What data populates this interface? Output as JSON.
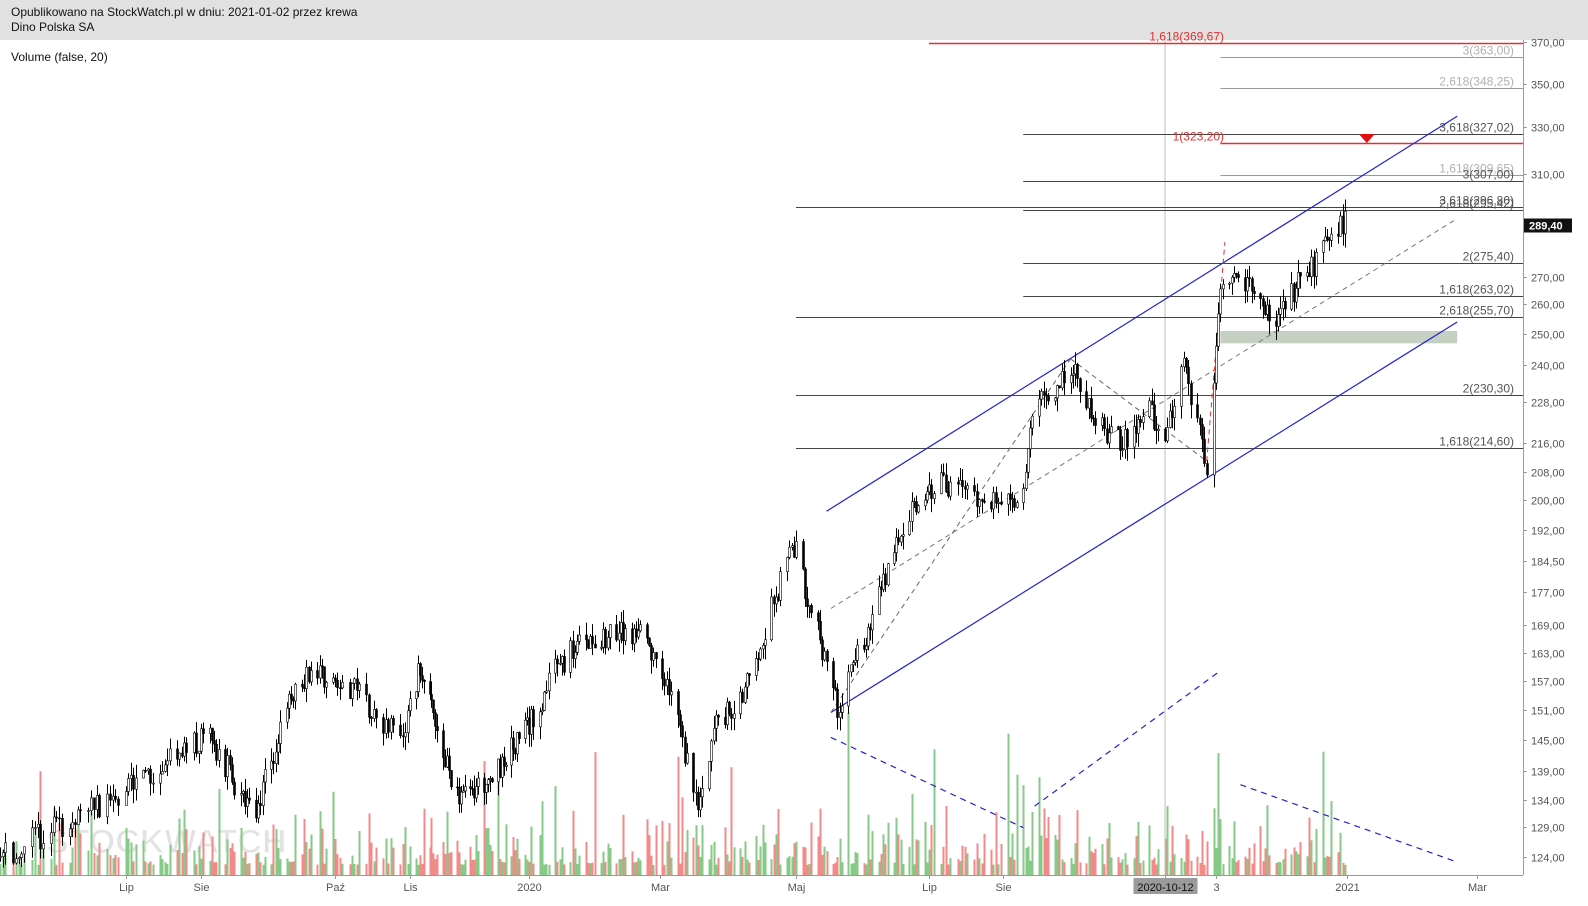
{
  "header": {
    "published": "Opublikowano na StockWatch.pl w dniu: 2021-01-02 przez krewa",
    "instrument": "Dino Polska SA"
  },
  "indicator_label": "Volume (false, 20)",
  "watermark": "STOCKWATCH",
  "colors": {
    "up": "#87c987",
    "down": "#f28a8a",
    "candle": "#000000",
    "fib_red": "#e03030",
    "fib_gray": "#9a9a9a",
    "channel": "#2222cc",
    "zone": "#c5cfc2"
  },
  "chart_data": {
    "type": "candlestick",
    "y_ticks": [
      "370,00",
      "350,00",
      "330,00",
      "310,00",
      "289,40",
      "270,00",
      "260,00",
      "250,00",
      "240,00",
      "228,00",
      "216,00",
      "208,00",
      "200,00",
      "192,00",
      "184,50",
      "177,00",
      "169,00",
      "163,00",
      "157,00",
      "151,00",
      "145,00",
      "139,00",
      "134,00",
      "129,00",
      "124,00"
    ],
    "y_tick_values": [
      370,
      350,
      330,
      310,
      289.4,
      270,
      260,
      250,
      240,
      228,
      216,
      208,
      200,
      192,
      184.5,
      177,
      169,
      163,
      157,
      151,
      145,
      139,
      134,
      129,
      124
    ],
    "last_price": "289,40",
    "x_labels": [
      {
        "label": "Lip",
        "date": "2019-07-01"
      },
      {
        "label": "Sie",
        "date": "2019-08-01"
      },
      {
        "label": "Paź",
        "date": "2019-10-01"
      },
      {
        "label": "Lis",
        "date": "2019-11-01"
      },
      {
        "label": "2020",
        "date": "2020-01-01"
      },
      {
        "label": "Mar",
        "date": "2020-03-01"
      },
      {
        "label": "Maj",
        "date": "2020-05-01"
      },
      {
        "label": "Lip",
        "date": "2020-07-01"
      },
      {
        "label": "Sie",
        "date": "2020-08-01"
      },
      {
        "label": "2020-10-12",
        "date": "2020-10-12"
      },
      {
        "label": "3",
        "date": "2020-11-03"
      },
      {
        "label": "2021",
        "date": "2021-01-01"
      },
      {
        "label": "Mar",
        "date": "2021-03-01"
      }
    ],
    "price_path": [
      [
        "2019-05-15",
        124
      ],
      [
        "2019-06-10",
        130
      ],
      [
        "2019-07-15",
        140
      ],
      [
        "2019-08-05",
        146
      ],
      [
        "2019-08-25",
        130
      ],
      [
        "2019-09-10",
        152
      ],
      [
        "2019-09-20",
        160
      ],
      [
        "2019-10-10",
        155
      ],
      [
        "2019-10-28",
        145
      ],
      [
        "2019-11-06",
        160
      ],
      [
        "2019-11-18",
        141
      ],
      [
        "2019-11-28",
        134
      ],
      [
        "2019-12-15",
        139
      ],
      [
        "2019-12-31",
        147
      ],
      [
        "2020-01-15",
        161
      ],
      [
        "2020-01-31",
        167
      ],
      [
        "2020-02-20",
        167
      ],
      [
        "2020-03-05",
        155
      ],
      [
        "2020-03-18",
        132
      ],
      [
        "2020-03-25",
        148
      ],
      [
        "2020-04-05",
        152
      ],
      [
        "2020-04-20",
        173
      ],
      [
        "2020-04-30",
        188
      ],
      [
        "2020-05-10",
        169
      ],
      [
        "2020-05-20",
        152
      ],
      [
        "2020-06-05",
        171
      ],
      [
        "2020-06-20",
        194
      ],
      [
        "2020-07-05",
        205
      ],
      [
        "2020-07-25",
        201
      ],
      [
        "2020-08-08",
        197
      ],
      [
        "2020-08-15",
        225
      ],
      [
        "2020-08-31",
        240
      ],
      [
        "2020-09-10",
        222
      ],
      [
        "2020-09-25",
        216
      ],
      [
        "2020-10-05",
        226
      ],
      [
        "2020-10-12",
        218
      ],
      [
        "2020-10-20",
        238
      ],
      [
        "2020-10-30",
        209
      ],
      [
        "2020-11-05",
        262
      ],
      [
        "2020-11-15",
        270
      ],
      [
        "2020-11-30",
        252
      ],
      [
        "2020-12-10",
        268
      ],
      [
        "2020-12-20",
        278
      ],
      [
        "2020-12-31",
        291
      ]
    ],
    "fib_levels": [
      {
        "label": "1,618(369,67)",
        "value": 369.67,
        "style": "red",
        "start": "2020-07-01"
      },
      {
        "label": "3(363,00)",
        "value": 363.0,
        "style": "gray",
        "start": "2020-11-05"
      },
      {
        "label": "2,618(348,25)",
        "value": 348.25,
        "style": "gray",
        "start": "2020-11-05"
      },
      {
        "label": "3,618(327,02)",
        "value": 327.02,
        "style": "dark",
        "start": "2020-08-10"
      },
      {
        "label": "1(323,20)",
        "value": 323.2,
        "style": "red",
        "start": "2020-11-05"
      },
      {
        "label": "1,618(309,65)",
        "value": 309.65,
        "style": "gray",
        "start": "2020-11-05"
      },
      {
        "label": "3(307,00)",
        "value": 307.0,
        "style": "dark",
        "start": "2020-08-10"
      },
      {
        "label": "3,618(296,80)",
        "value": 296.8,
        "style": "dark",
        "start": "2020-05-01"
      },
      {
        "label": "2,618(295,42)",
        "value": 295.42,
        "style": "dark",
        "start": "2020-08-10"
      },
      {
        "label": "2(275,40)",
        "value": 275.4,
        "style": "dark",
        "start": "2020-08-10"
      },
      {
        "label": "1,618(263,02)",
        "value": 263.02,
        "style": "dark",
        "start": "2020-08-10"
      },
      {
        "label": "2,618(255,70)",
        "value": 255.7,
        "style": "dark",
        "start": "2020-05-01"
      },
      {
        "label": "2(230,30)",
        "value": 230.3,
        "style": "dark",
        "start": "2020-05-01"
      },
      {
        "label": "1,618(214,60)",
        "value": 214.6,
        "style": "dark",
        "start": "2020-05-01"
      }
    ],
    "channel_upper": [
      [
        "2020-05-15",
        197
      ],
      [
        "2021-02-20",
        335
      ]
    ],
    "channel_lower": [
      [
        "2020-05-17",
        150.5
      ],
      [
        "2021-02-20",
        254
      ]
    ],
    "channel_mid": [
      [
        "2020-05-17",
        173
      ],
      [
        "2021-02-20",
        292
      ]
    ],
    "zigzag": [
      [
        "2020-05-17",
        150.5
      ],
      [
        "2020-08-31",
        242
      ],
      [
        "2020-10-30",
        211
      ],
      [
        "2020-11-07",
        283
      ]
    ],
    "zone": {
      "from": "2020-11-05",
      "to": "2021-02-20",
      "low": 247,
      "high": 251
    },
    "target_marker": {
      "date": "2021-01-10",
      "value": 327
    },
    "volume_trendlines": [
      [
        [
          "2020-05-17",
          0.64
        ],
        [
          "2020-08-10",
          0.22
        ]
      ],
      [
        [
          "2020-08-15",
          0.32
        ],
        [
          "2020-11-05",
          0.95
        ]
      ],
      [
        [
          "2020-11-14",
          0.42
        ],
        [
          "2021-02-20",
          0.06
        ]
      ]
    ],
    "crosshair_date": "2020-10-12"
  }
}
